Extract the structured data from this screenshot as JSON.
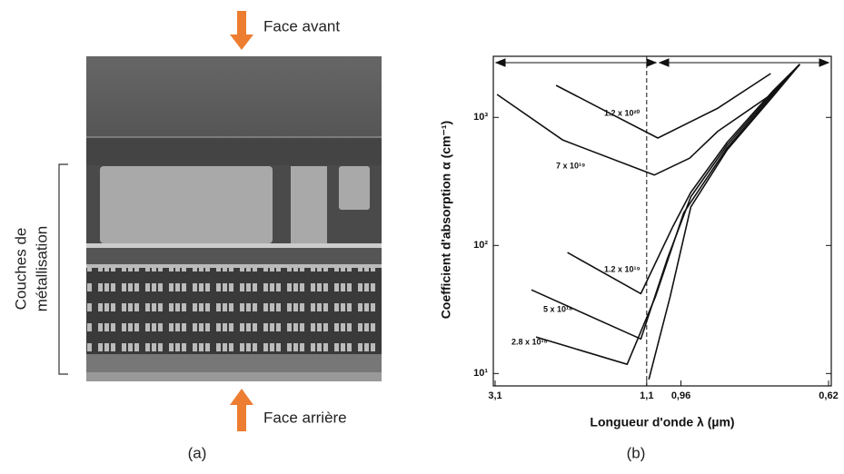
{
  "figure": {
    "top_arrow_label": "Face avant",
    "bottom_arrow_label": "Face arrière",
    "bracket_label": [
      "Couches de",
      "métallisation"
    ],
    "label_a": "(a)",
    "label_b": "(b)"
  },
  "chart_data": {
    "type": "line",
    "xlabel": "Longueur d'onde λ (µm)",
    "ylabel": "Coefficient d'absorption α (cm⁻¹)",
    "xscale": "reciprocal",
    "yscale": "log",
    "xlim": [
      3.1,
      0.62
    ],
    "ylim": [
      8,
      3000
    ],
    "xticks": [
      {
        "value": 3.1,
        "label": "3,1"
      },
      {
        "value": 1.1,
        "label": "1,1"
      },
      {
        "value": 0.96,
        "label": "0,96"
      },
      {
        "value": 0.62,
        "label": "0,62"
      }
    ],
    "yticks": [
      {
        "value": 10,
        "label": "10¹"
      },
      {
        "value": 100,
        "label": "10²"
      },
      {
        "value": 1000,
        "label": "10³"
      }
    ],
    "dashed_line_x": 1.1,
    "series": [
      {
        "name": "1.2 x 10²⁰",
        "color": "#111111",
        "x": [
          1.79,
          1.31,
          1.05,
          0.844,
          0.72
        ],
        "values": [
          1780,
          1085,
          690,
          1180,
          2200
        ]
      },
      {
        "name": "7 x 10¹⁹",
        "color": "#111111",
        "x": [
          3.03,
          1.71,
          1.065,
          0.93,
          0.844,
          0.72,
          0.666
        ],
        "values": [
          1510,
          665,
          355,
          480,
          780,
          1500,
          2600
        ]
      },
      {
        "name": "1.2 x 10¹⁹",
        "color": "#111111",
        "x": [
          1.66,
          1.128,
          0.99,
          0.926,
          0.819,
          0.716,
          0.666
        ],
        "values": [
          88,
          42,
          140,
          260,
          640,
          1600,
          2600
        ]
      },
      {
        "name": "5 x 10¹⁸",
        "color": "#111111",
        "x": [
          2.16,
          1.128,
          1.01,
          0.926,
          0.819,
          0.716,
          0.666
        ],
        "values": [
          45,
          18.6,
          80,
          240,
          610,
          1550,
          2600
        ]
      },
      {
        "name": "2.8 x 10¹⁸",
        "color": "#111111",
        "x": [
          2.08,
          1.2,
          1.06,
          0.95,
          0.819,
          0.716,
          0.666
        ],
        "values": [
          19.3,
          11.8,
          40,
          180,
          580,
          1500,
          2600
        ]
      },
      {
        "color": "#111111",
        "x": [
          1.09,
          1.0,
          0.926,
          0.819,
          0.716,
          0.666
        ],
        "values": [
          9,
          40,
          200,
          560,
          1450,
          2600
        ]
      }
    ]
  }
}
